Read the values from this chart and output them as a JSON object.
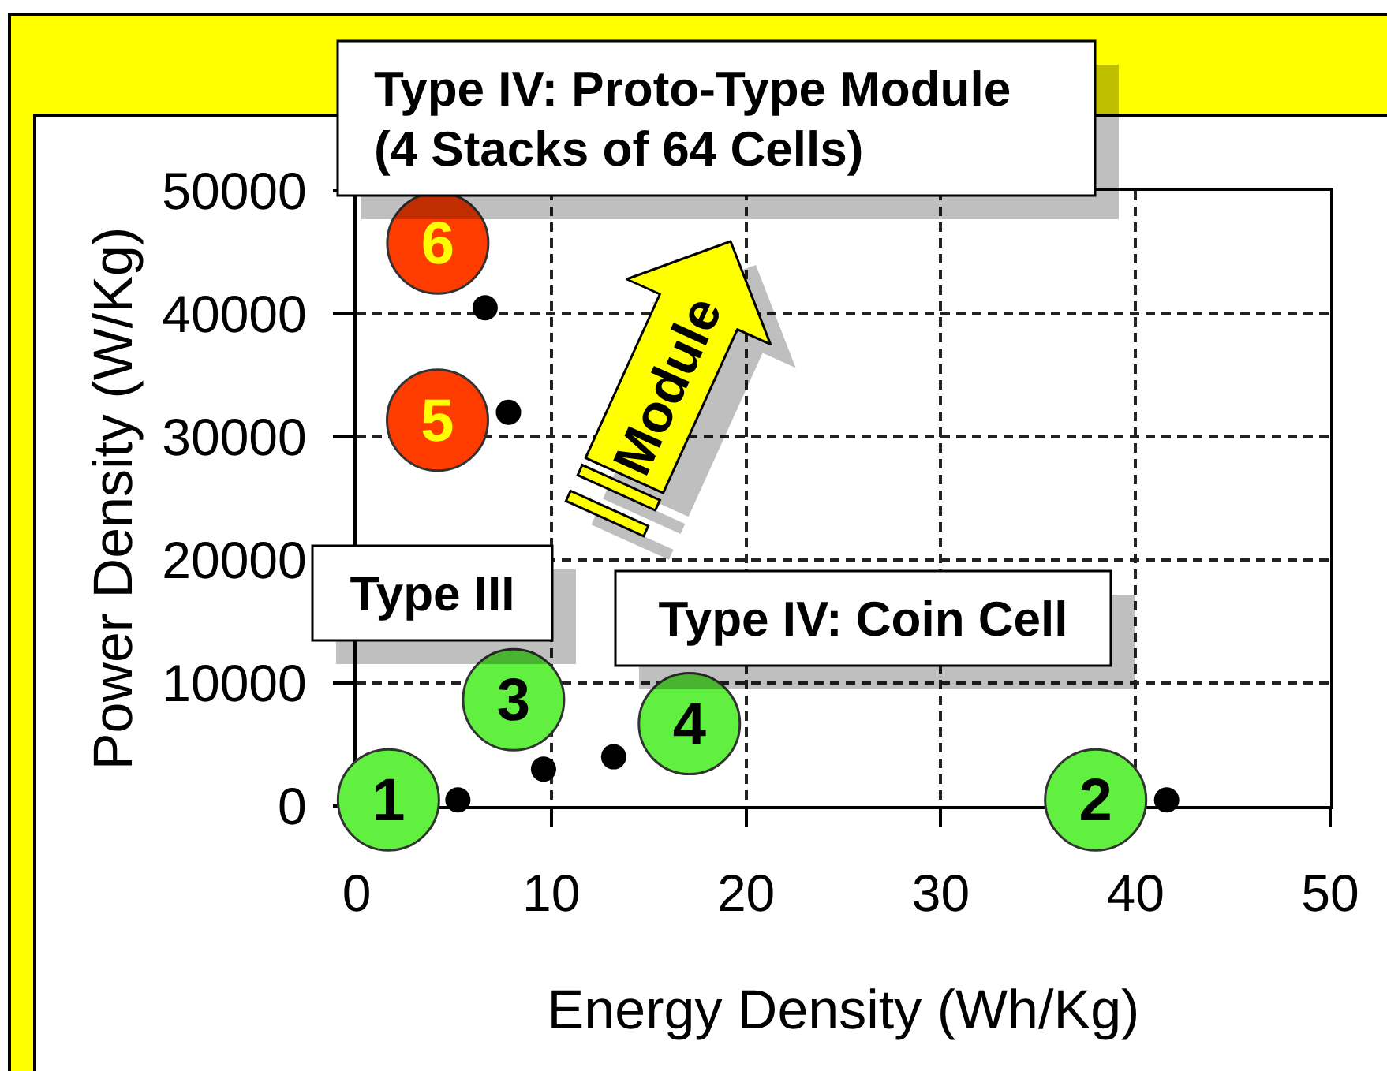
{
  "chart_data": {
    "type": "scatter",
    "xlabel": "Energy Density (Wh/Kg)",
    "ylabel": "Power Density (W/Kg)",
    "x": [
      5.2,
      41.6,
      9.6,
      13.2,
      7.8,
      6.6
    ],
    "series": [
      {
        "color": "#000000",
        "values": [
          500,
          500,
          3000,
          4000,
          32000,
          40500
        ]
      }
    ],
    "xlim": [
      0,
      50
    ],
    "ylim": [
      0,
      50000
    ],
    "xticks": [
      0,
      10,
      20,
      30,
      40,
      50
    ],
    "yticks": [
      0,
      10000,
      20000,
      30000,
      40000,
      50000
    ],
    "grid": true,
    "marker": "circle",
    "annotations": [
      {
        "text": "1",
        "x": 5.2,
        "y": 500
      },
      {
        "text": "2",
        "x": 41.6,
        "y": 500
      },
      {
        "text": "3",
        "x": 9.6,
        "y": 3000
      },
      {
        "text": "4",
        "x": 13.2,
        "y": 4000
      },
      {
        "text": "5",
        "x": 7.8,
        "y": 32000
      },
      {
        "text": "6",
        "x": 6.6,
        "y": 40500
      },
      "Type IV: Proto-Type Module\n(4 Stacks of 64 Cells)",
      "Type III",
      "Type IV: Coin Cell",
      "Module"
    ]
  }
}
